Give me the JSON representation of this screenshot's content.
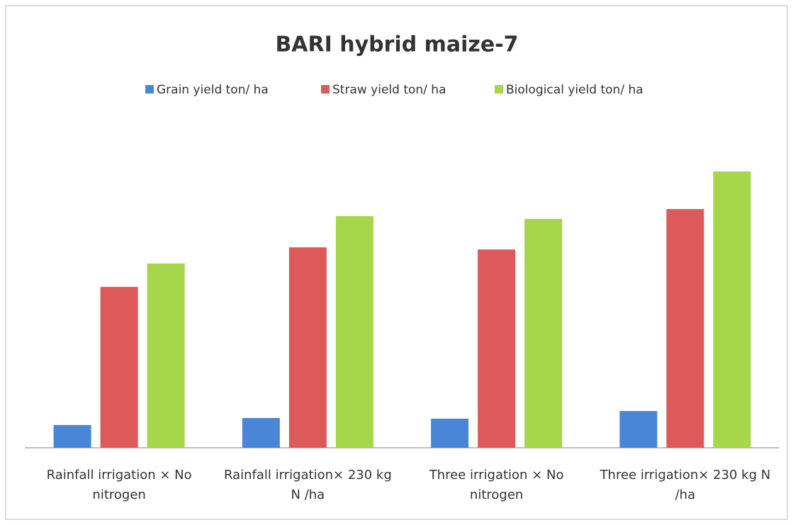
{
  "chart_data": {
    "type": "bar",
    "title": "BARI hybrid maize-7",
    "categories": [
      "Rainfall irrigation × No nitrogen",
      "Rainfall irrigation×  230 kg N /ha",
      "Three irrigation × No nitrogen",
      "Three irrigation×  230 kg N /ha"
    ],
    "series": [
      {
        "name": "Grain yield ton/ ha",
        "color": "#4a86d8",
        "values": [
          1.07,
          1.4,
          1.37,
          1.73
        ]
      },
      {
        "name": "Straw yield ton/ ha",
        "color": "#de5a5a",
        "values": [
          7.57,
          9.43,
          9.33,
          11.23
        ]
      },
      {
        "name": "Biological yield ton/ ha",
        "color": "#a6d64a",
        "values": [
          8.67,
          10.9,
          10.77,
          13.0
        ]
      }
    ],
    "legend": "top"
  }
}
